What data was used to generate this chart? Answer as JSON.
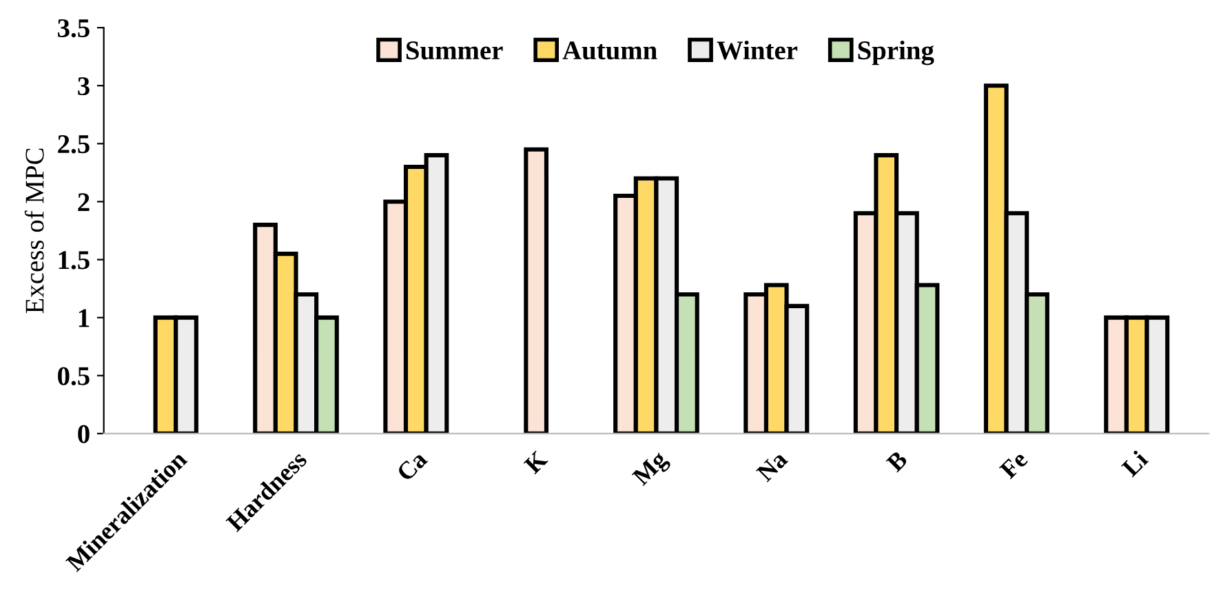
{
  "chart_data": {
    "type": "bar",
    "ylabel": "Excess of MPC",
    "categories": [
      "Mineralization",
      "Hardness",
      "Ca",
      "K",
      "Mg",
      "Na",
      "B",
      "Fe",
      "Li"
    ],
    "series": [
      {
        "name": "Summer",
        "color": "#fbe3d6",
        "values": [
          null,
          1.8,
          2.0,
          2.45,
          2.05,
          1.2,
          1.9,
          null,
          1.0
        ]
      },
      {
        "name": "Autumn",
        "color": "#ffd966",
        "values": [
          1.0,
          1.55,
          2.3,
          null,
          2.2,
          1.28,
          2.4,
          3.0,
          1.0
        ]
      },
      {
        "name": "Winter",
        "color": "#ededed",
        "values": [
          1.0,
          1.2,
          2.4,
          null,
          2.2,
          1.1,
          1.9,
          1.9,
          1.0
        ]
      },
      {
        "name": "Spring",
        "color": "#c5e0b4",
        "values": [
          null,
          1.0,
          null,
          null,
          1.2,
          null,
          1.28,
          1.2,
          null
        ]
      }
    ],
    "ylim": [
      0,
      3.5
    ],
    "yticks": [
      0,
      0.5,
      1,
      1.5,
      2,
      2.5,
      3,
      3.5
    ],
    "grid": false,
    "legend": "top"
  }
}
